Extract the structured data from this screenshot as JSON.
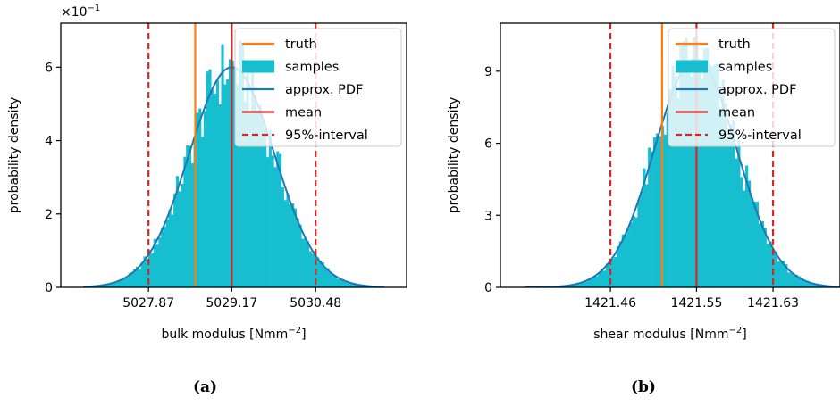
{
  "captions": [
    "(a)",
    "(b)"
  ],
  "chart_data": [
    {
      "type": "histogram",
      "xlabel": "bulk modulus [Nmm",
      "xlabel_sup": "−2",
      "ylabel": "probability density",
      "y_multiplier": "×10",
      "y_multiplier_sup": "−1",
      "xlim": [
        5026.5,
        5031.9
      ],
      "ylim": [
        0,
        7.2
      ],
      "xticks": [
        5027.87,
        5029.17,
        5030.48
      ],
      "xtick_labels": [
        "5027.87",
        "5029.17",
        "5030.48"
      ],
      "yticks": [
        0,
        2,
        4,
        6
      ],
      "ytick_labels": [
        "0",
        "2",
        "4",
        "6"
      ],
      "truth": 5028.6,
      "mean": 5029.17,
      "interval_95": [
        5027.87,
        5030.48
      ],
      "pdf": {
        "mu": 5029.17,
        "sigma": 0.665,
        "peak": 6.0
      },
      "hist_range": [
        5026.85,
        5031.55
      ],
      "n_bins": 120,
      "legend": [
        "truth",
        "samples",
        "approx. PDF",
        "mean",
        "95%-interval"
      ],
      "legend_position": "upper right",
      "grid": false,
      "colors": {
        "truth": "#ff7f0e",
        "samples": "#17becf",
        "pdf": "#1f77b4",
        "mean": "#d62728",
        "interval": "#d62728"
      }
    },
    {
      "type": "histogram",
      "xlabel": "shear modulus [Nmm",
      "xlabel_sup": "−2",
      "ylabel": "probability density",
      "y_multiplier": "",
      "y_multiplier_sup": "",
      "xlim": [
        1421.345,
        1421.7
      ],
      "ylim": [
        0,
        11
      ],
      "xticks": [
        1421.46,
        1421.55,
        1421.63
      ],
      "xtick_labels": [
        "1421.46",
        "1421.55",
        "1421.63"
      ],
      "yticks": [
        0,
        3,
        6,
        9
      ],
      "ytick_labels": [
        "0",
        "3",
        "6",
        "9"
      ],
      "truth": 1421.514,
      "mean": 1421.55,
      "interval_95": [
        1421.46,
        1421.63
      ],
      "pdf": {
        "mu": 1421.549,
        "sigma": 0.043,
        "peak": 9.5
      },
      "hist_range": [
        1421.37,
        1421.7
      ],
      "n_bins": 120,
      "legend": [
        "truth",
        "samples",
        "approx. PDF",
        "mean",
        "95%-interval"
      ],
      "legend_position": "upper right",
      "grid": false,
      "colors": {
        "truth": "#ff7f0e",
        "samples": "#17becf",
        "pdf": "#1f77b4",
        "mean": "#d62728",
        "interval": "#d62728"
      }
    }
  ]
}
